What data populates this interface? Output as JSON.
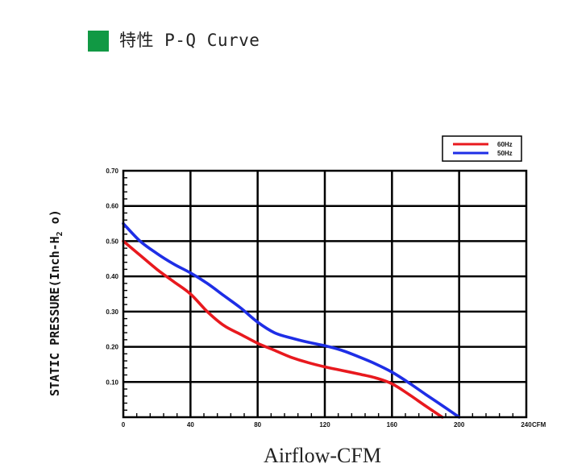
{
  "header": {
    "title": "特性 P-Q Curve",
    "marker_color": "#119944"
  },
  "chart_data": {
    "type": "line",
    "title": "特性 P-Q Curve",
    "xlabel": "Airflow-CFM",
    "xunit": "CFM",
    "ylabel_main": "STATIC PRESSURE(Inch-H",
    "ylabel_sub": "2",
    "ylabel_tail": " o)",
    "xlim": [
      0,
      240
    ],
    "ylim": [
      0,
      0.7
    ],
    "x_ticks": [
      0,
      40,
      80,
      120,
      160,
      200,
      240
    ],
    "x_tick_labels": [
      "0",
      "40",
      "80",
      "120",
      "160",
      "200",
      "240"
    ],
    "y_ticks": [
      0.1,
      0.2,
      0.3,
      0.4,
      0.5,
      0.6,
      0.7
    ],
    "y_tick_labels": [
      "0.10",
      "0.20",
      "0.30",
      "0.40",
      "0.50",
      "0.60",
      "0.70"
    ],
    "grid": true,
    "legend_position": "top-right",
    "series": [
      {
        "name": "60Hz",
        "color": "#e8191e",
        "x": [
          0,
          10,
          20,
          30,
          40,
          50,
          60,
          70,
          80,
          90,
          100,
          110,
          120,
          130,
          140,
          150,
          160,
          170,
          180,
          190
        ],
        "y": [
          0.5,
          0.46,
          0.42,
          0.385,
          0.35,
          0.3,
          0.26,
          0.235,
          0.21,
          0.19,
          0.17,
          0.155,
          0.143,
          0.133,
          0.123,
          0.112,
          0.095,
          0.065,
          0.032,
          0.0
        ]
      },
      {
        "name": "50Hz",
        "color": "#1e2ee6",
        "x": [
          0,
          10,
          20,
          30,
          40,
          50,
          60,
          70,
          80,
          90,
          100,
          110,
          120,
          130,
          140,
          150,
          160,
          170,
          180,
          190,
          200
        ],
        "y": [
          0.55,
          0.5,
          0.465,
          0.435,
          0.41,
          0.38,
          0.345,
          0.31,
          0.27,
          0.24,
          0.225,
          0.213,
          0.203,
          0.19,
          0.172,
          0.152,
          0.128,
          0.098,
          0.065,
          0.033,
          0.0
        ]
      }
    ]
  }
}
